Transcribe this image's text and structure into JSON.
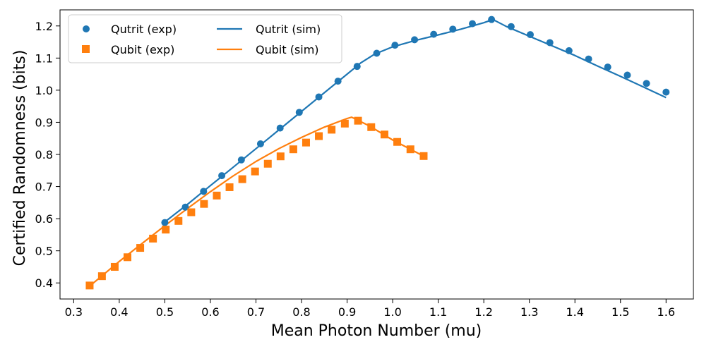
{
  "chart_data": {
    "type": "line",
    "title": "",
    "xlabel": "Mean Photon Number (mu)",
    "ylabel": "Certified Randomness (bits)",
    "xlim": [
      0.27,
      1.66
    ],
    "ylim": [
      0.35,
      1.25
    ],
    "grid": false,
    "legend_location": "top-left",
    "x_ticks": [
      {
        "value": 0.3,
        "label": "0.3"
      },
      {
        "value": 0.4,
        "label": "0.4"
      },
      {
        "value": 0.5,
        "label": "0.5"
      },
      {
        "value": 0.6,
        "label": "0.6"
      },
      {
        "value": 0.7,
        "label": "0.7"
      },
      {
        "value": 0.8,
        "label": "0.8"
      },
      {
        "value": 0.9,
        "label": "0.9"
      },
      {
        "value": 1.0,
        "label": "1.0"
      },
      {
        "value": 1.1,
        "label": "1.1"
      },
      {
        "value": 1.2,
        "label": "1.2"
      },
      {
        "value": 1.3,
        "label": "1.3"
      },
      {
        "value": 1.4,
        "label": "1.4"
      },
      {
        "value": 1.5,
        "label": "1.5"
      },
      {
        "value": 1.6,
        "label": "1.6"
      }
    ],
    "y_ticks": [
      {
        "value": 0.4,
        "label": "0.4"
      },
      {
        "value": 0.5,
        "label": "0.5"
      },
      {
        "value": 0.6,
        "label": "0.6"
      },
      {
        "value": 0.7,
        "label": "0.7"
      },
      {
        "value": 0.8,
        "label": "0.8"
      },
      {
        "value": 0.9,
        "label": "0.9"
      },
      {
        "value": 1.0,
        "label": "1.0"
      },
      {
        "value": 1.1,
        "label": "1.1"
      },
      {
        "value": 1.2,
        "label": "1.2"
      }
    ],
    "series": [
      {
        "name": "Qutrit (exp)",
        "kind": "scatter",
        "marker": "circle",
        "color": "#1f77b4",
        "x": [
          0.5,
          0.545,
          0.585,
          0.625,
          0.668,
          0.71,
          0.753,
          0.795,
          0.838,
          0.88,
          0.922,
          0.965,
          1.005,
          1.048,
          1.09,
          1.132,
          1.175,
          1.217,
          1.26,
          1.302,
          1.345,
          1.387,
          1.43,
          1.472,
          1.515,
          1.557,
          1.6
        ],
        "y": [
          0.588,
          0.636,
          0.685,
          0.734,
          0.783,
          0.833,
          0.882,
          0.931,
          0.979,
          1.028,
          1.074,
          1.115,
          1.14,
          1.157,
          1.174,
          1.19,
          1.207,
          1.22,
          1.198,
          1.173,
          1.148,
          1.123,
          1.097,
          1.072,
          1.047,
          1.021,
          0.994
        ]
      },
      {
        "name": "Qubit (exp)",
        "kind": "scatter",
        "marker": "square",
        "color": "#ff7f0e",
        "x": [
          0.335,
          0.362,
          0.39,
          0.418,
          0.446,
          0.474,
          0.502,
          0.53,
          0.558,
          0.586,
          0.614,
          0.642,
          0.67,
          0.698,
          0.726,
          0.754,
          0.782,
          0.81,
          0.838,
          0.866,
          0.895,
          0.924,
          0.953,
          0.982,
          1.01,
          1.039,
          1.068
        ],
        "y": [
          0.392,
          0.421,
          0.45,
          0.48,
          0.509,
          0.538,
          0.566,
          0.593,
          0.62,
          0.646,
          0.672,
          0.698,
          0.723,
          0.747,
          0.771,
          0.794,
          0.816,
          0.837,
          0.857,
          0.877,
          0.896,
          0.905,
          0.885,
          0.862,
          0.839,
          0.816,
          0.795
        ]
      },
      {
        "name": "Qutrit (sim)",
        "kind": "line",
        "color": "#1f77b4",
        "x": [
          0.5,
          0.55,
          0.6,
          0.65,
          0.7,
          0.75,
          0.8,
          0.85,
          0.9,
          0.93,
          0.96,
          1.0,
          1.05,
          1.1,
          1.15,
          1.2,
          1.22,
          1.25,
          1.3,
          1.35,
          1.4,
          1.45,
          1.5,
          1.55,
          1.6
        ],
        "y": [
          0.59,
          0.645,
          0.703,
          0.76,
          0.818,
          0.876,
          0.934,
          0.992,
          1.05,
          1.085,
          1.112,
          1.135,
          1.155,
          1.172,
          1.19,
          1.21,
          1.22,
          1.198,
          1.168,
          1.138,
          1.108,
          1.075,
          1.043,
          1.01,
          0.977
        ]
      },
      {
        "name": "Qubit (sim)",
        "kind": "line",
        "color": "#ff7f0e",
        "x": [
          0.335,
          0.4,
          0.45,
          0.5,
          0.55,
          0.6,
          0.65,
          0.7,
          0.75,
          0.8,
          0.85,
          0.9,
          0.91,
          0.95,
          1.0,
          1.05,
          1.07
        ],
        "y": [
          0.39,
          0.467,
          0.523,
          0.578,
          0.632,
          0.684,
          0.733,
          0.778,
          0.818,
          0.853,
          0.885,
          0.912,
          0.916,
          0.888,
          0.845,
          0.808,
          0.793
        ]
      }
    ]
  }
}
